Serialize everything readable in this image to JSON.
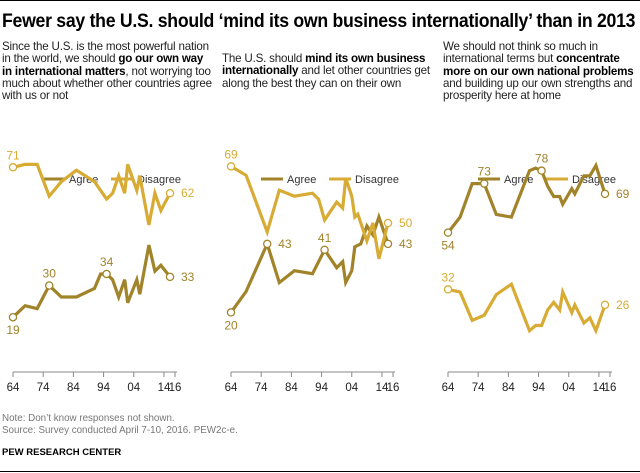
{
  "title": "Fewer say the U.S. should ‘mind its own business internationally’ than in 2013",
  "note": "Note: Don’t know responses not shown.",
  "source": "Source: Survey conducted April 7-10, 2016. PEW2c-e.",
  "brand": "PEW RESEARCH CENTER",
  "colors": {
    "agree": "#a1832a",
    "disagree": "#d7ab34",
    "axis": "#888888",
    "label": "#a58a3a"
  },
  "questions": [
    {
      "pre": "Since the U.S. is the most powerful nation in the world, we should ",
      "bold": "go our own way in international matters",
      "post": ", not worrying too much about whether other countries agree with us or not"
    },
    {
      "pre": "The U.S. should ",
      "bold": "mind its own business internationally",
      "post": " and let other countries get along the best they can on their own"
    },
    {
      "pre": "We should not think so much in international terms but ",
      "bold": "concentrate more on our own national problems",
      "post": " and building up our own strengths and prosperity here at home"
    }
  ],
  "chart_data": [
    {
      "type": "line",
      "legend": [
        "Agree",
        "Disagree"
      ],
      "legend_placement": "top",
      "xticks": [
        "64",
        "74",
        "84",
        "94",
        "04",
        "14",
        "16"
      ],
      "xlim": [
        1964,
        2016
      ],
      "ylim": [
        0,
        77
      ],
      "grid": false,
      "series": [
        {
          "name": "Agree",
          "x": [
            1964,
            1968,
            1972,
            1976,
            1980,
            1985,
            1991,
            1993,
            1995,
            1997,
            1999,
            2001,
            2002,
            2005,
            2006,
            2009,
            2011,
            2013,
            2016
          ],
          "values": [
            19,
            23,
            22,
            30,
            26,
            26,
            29,
            34,
            34,
            32,
            26,
            32,
            24,
            32,
            27,
            44,
            35,
            37,
            33
          ]
        },
        {
          "name": "Disagree",
          "x": [
            1964,
            1968,
            1972,
            1976,
            1980,
            1985,
            1991,
            1995,
            1997,
            1999,
            2001,
            2002,
            2005,
            2006,
            2009,
            2011,
            2013,
            2016
          ],
          "values": [
            71,
            72,
            72,
            61,
            66,
            70,
            66,
            60,
            62,
            68,
            62,
            72,
            63,
            68,
            51,
            62,
            56,
            62
          ]
        }
      ],
      "labels": [
        {
          "series": "Disagree",
          "x": 1964,
          "value": 71,
          "pos": "above"
        },
        {
          "series": "Disagree",
          "x": 2016,
          "value": 62,
          "pos": "right"
        },
        {
          "series": "Agree",
          "x": 1964,
          "value": 19,
          "pos": "below"
        },
        {
          "series": "Agree",
          "x": 1976,
          "value": 30,
          "pos": "above"
        },
        {
          "series": "Agree",
          "x": 1995,
          "value": 34,
          "pos": "above"
        },
        {
          "series": "Agree",
          "x": 2016,
          "value": 33,
          "pos": "right"
        }
      ]
    },
    {
      "type": "line",
      "legend": [
        "Agree",
        "Disagree"
      ],
      "legend_placement": "top",
      "xticks": [
        "64",
        "74",
        "84",
        "94",
        "04",
        "14",
        "16"
      ],
      "xlim": [
        1964,
        2016
      ],
      "ylim": [
        0,
        74.5
      ],
      "grid": false,
      "series": [
        {
          "name": "Agree",
          "x": [
            1964,
            1969,
            1976,
            1980,
            1985,
            1991,
            1995,
            1999,
            2001,
            2002,
            2004,
            2005,
            2007,
            2009,
            2011,
            2013,
            2016
          ],
          "values": [
            20,
            27,
            43,
            30,
            34,
            33,
            41,
            35,
            37,
            30,
            34,
            42,
            43,
            49,
            46,
            52,
            43
          ]
        },
        {
          "name": "Disagree",
          "x": [
            1964,
            1969,
            1976,
            1980,
            1985,
            1991,
            1993,
            1995,
            1999,
            2001,
            2002,
            2004,
            2005,
            2006,
            2009,
            2011,
            2013,
            2016
          ],
          "values": [
            69,
            66,
            47,
            61,
            59,
            60,
            58,
            51,
            57,
            55,
            65,
            59,
            52,
            53,
            44,
            50,
            38,
            50
          ]
        }
      ],
      "labels": [
        {
          "series": "Disagree",
          "x": 1964,
          "value": 69,
          "pos": "above"
        },
        {
          "series": "Disagree",
          "x": 2016,
          "value": 50,
          "pos": "right"
        },
        {
          "series": "Agree",
          "x": 1964,
          "value": 20,
          "pos": "below"
        },
        {
          "series": "Agree",
          "x": 1976,
          "value": 43,
          "pos": "right"
        },
        {
          "series": "Agree",
          "x": 1995,
          "value": 41,
          "pos": "above"
        },
        {
          "series": "Agree",
          "x": 2016,
          "value": 43,
          "pos": "right"
        }
      ]
    },
    {
      "type": "line",
      "legend": [
        "Agree",
        "Disagree"
      ],
      "legend_placement": "top",
      "xticks": [
        "64",
        "74",
        "84",
        "94",
        "04",
        "14",
        "16"
      ],
      "xlim": [
        1964,
        2016
      ],
      "ylim": [
        0,
        86
      ],
      "grid": false,
      "series": [
        {
          "name": "Agree",
          "x": [
            1964,
            1968,
            1972,
            1976,
            1980,
            1985,
            1991,
            1993,
            1995,
            1997,
            1999,
            2001,
            2002,
            2005,
            2006,
            2009,
            2011,
            2013,
            2016
          ],
          "values": [
            54,
            60,
            73,
            73,
            61,
            60,
            78,
            79,
            78,
            72,
            68,
            68,
            65,
            71,
            69,
            76,
            76,
            80,
            69
          ]
        },
        {
          "name": "Disagree",
          "x": [
            1964,
            1968,
            1972,
            1976,
            1980,
            1985,
            1991,
            1993,
            1995,
            1997,
            1999,
            2001,
            2002,
            2005,
            2006,
            2009,
            2011,
            2013,
            2016
          ],
          "values": [
            32,
            31,
            20,
            22,
            30,
            34,
            16,
            18,
            18,
            24,
            27,
            24,
            31,
            23,
            26,
            19,
            21,
            16,
            26
          ]
        }
      ],
      "labels": [
        {
          "series": "Agree",
          "x": 1964,
          "value": 54,
          "pos": "below"
        },
        {
          "series": "Agree",
          "x": 1976,
          "value": 73,
          "pos": "above"
        },
        {
          "series": "Agree",
          "x": 1995,
          "value": 78,
          "pos": "above"
        },
        {
          "series": "Agree",
          "x": 2016,
          "value": 69,
          "pos": "right"
        },
        {
          "series": "Disagree",
          "x": 1964,
          "value": 32,
          "pos": "above"
        },
        {
          "series": "Disagree",
          "x": 2016,
          "value": 26,
          "pos": "right"
        }
      ]
    }
  ]
}
